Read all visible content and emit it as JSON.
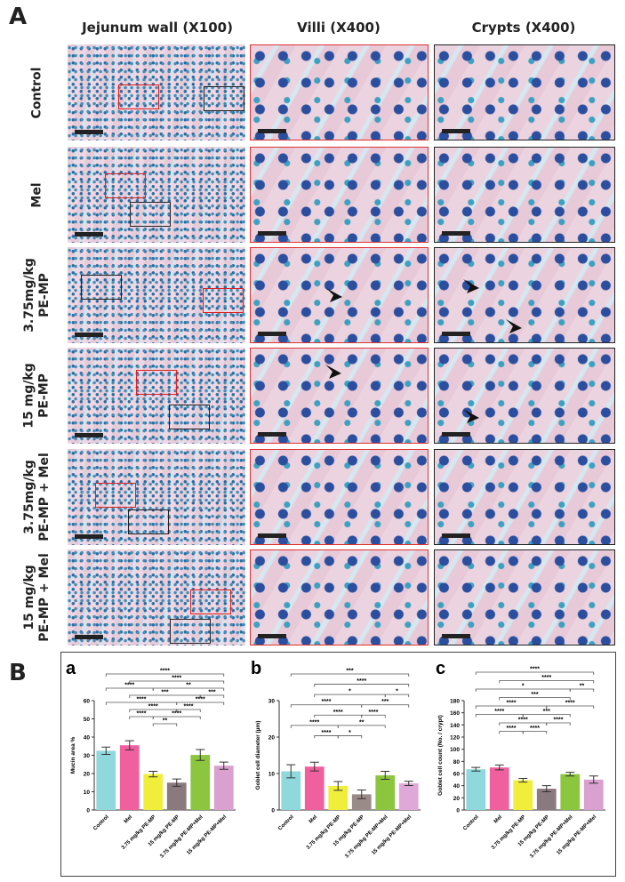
{
  "panel_labels": {
    "A": "A",
    "B": "B"
  },
  "columns": [
    "Jejunum wall (X100)",
    "Villi (X400)",
    "Crypts (X400)"
  ],
  "rows": [
    "Control",
    "Mel",
    "3.75mg/kg\nPE-MP",
    "15 mg/kg\nPE-MP",
    "3.75mg/kg\nPE-MP + Mel",
    "15 mg/kg\nPE-MP + Mel"
  ],
  "colors": {
    "roi_villi": "#e02020",
    "roi_crypts": "#222222"
  },
  "chart_data": [
    {
      "type": "bar",
      "panel": "a",
      "ylabel": "Mucin area %",
      "ylim": [
        0,
        60
      ],
      "yticks": [
        0,
        10,
        20,
        30,
        40,
        50,
        60
      ],
      "categories": [
        "Control",
        "Mel",
        "3.75 mg/kg PE-MP",
        "15 mg/kg PE-MP",
        "3.75 mg/kg PE-MP+Mel",
        "15 mg/kg PE-MP+Mel"
      ],
      "values": [
        32.5,
        35.5,
        19.7,
        15.0,
        30.2,
        24.3
      ],
      "errors": [
        2.0,
        2.5,
        1.5,
        2.0,
        3.0,
        2.0
      ],
      "colors": [
        "#8fd8dc",
        "#f0609e",
        "#f0ee3a",
        "#8a7a80",
        "#8cc63f",
        "#d9a0d0"
      ],
      "significance": [
        [
          0,
          5,
          "****"
        ],
        [
          1,
          5,
          "****"
        ],
        [
          2,
          5,
          "**"
        ],
        [
          1,
          4,
          "***"
        ],
        [
          0,
          3,
          "****"
        ],
        [
          1,
          3,
          "****"
        ],
        [
          3,
          5,
          "****"
        ],
        [
          0,
          2,
          "****"
        ],
        [
          2,
          4,
          "****"
        ],
        [
          1,
          2,
          "****"
        ],
        [
          2,
          3,
          "**"
        ],
        [
          3,
          4,
          "****"
        ],
        [
          4,
          5,
          "***"
        ]
      ]
    },
    {
      "type": "bar",
      "panel": "b",
      "ylabel": "Goblet cell diameter (µm)",
      "ylim": [
        0,
        30
      ],
      "yticks": [
        0,
        10,
        20,
        30
      ],
      "categories": [
        "Control",
        "Mel",
        "3.75 mg/kg PE-MP",
        "15 mg/kg PE-MP",
        "3.75 mg/kg PE-MP+Mel",
        "15 mg/kg PE-MP+Mel"
      ],
      "values": [
        10.6,
        11.9,
        6.6,
        4.3,
        9.5,
        7.3
      ],
      "errors": [
        1.8,
        1.2,
        1.2,
        1.2,
        1.1,
        0.6
      ],
      "colors": [
        "#8fd8dc",
        "#f0609e",
        "#f0ee3a",
        "#9a8a88",
        "#8cc63f",
        "#e0a8d8"
      ],
      "significance": [
        [
          0,
          5,
          "***"
        ],
        [
          1,
          5,
          "****"
        ],
        [
          1,
          4,
          "*"
        ],
        [
          0,
          3,
          "****"
        ],
        [
          1,
          3,
          "****"
        ],
        [
          3,
          5,
          "***"
        ],
        [
          0,
          2,
          "****"
        ],
        [
          2,
          4,
          "**"
        ],
        [
          1,
          2,
          "****"
        ],
        [
          2,
          3,
          "*"
        ],
        [
          3,
          4,
          "****"
        ],
        [
          4,
          5,
          "*"
        ]
      ]
    },
    {
      "type": "bar",
      "panel": "c",
      "ylabel": "Goblet cell count (No. / crypt)",
      "ylim": [
        0,
        180
      ],
      "yticks": [
        0,
        20,
        40,
        60,
        80,
        100,
        120,
        140,
        160,
        180
      ],
      "categories": [
        "Control",
        "Mel",
        "3.75 mg/kg PE-MP",
        "15 mg/kg PE-MP",
        "3.75 mg/kg PE-MP+Mel",
        "15 mg/kg PE-MP+Mel"
      ],
      "values": [
        67,
        70,
        49,
        35,
        59,
        50
      ],
      "errors": [
        3,
        4,
        3,
        5,
        3,
        6
      ],
      "colors": [
        "#8fd8dc",
        "#f0609e",
        "#f0ee3a",
        "#8a7a80",
        "#8cc63f",
        "#d9a0d0"
      ],
      "significance": [
        [
          0,
          5,
          "****"
        ],
        [
          1,
          5,
          "****"
        ],
        [
          0,
          4,
          "*"
        ],
        [
          1,
          4,
          "***"
        ],
        [
          0,
          3,
          "****"
        ],
        [
          2,
          4,
          "***"
        ],
        [
          1,
          3,
          "****"
        ],
        [
          0,
          2,
          "****"
        ],
        [
          3,
          5,
          "****"
        ],
        [
          1,
          2,
          "****"
        ],
        [
          2,
          3,
          "****"
        ],
        [
          3,
          4,
          "****"
        ],
        [
          4,
          5,
          "**"
        ]
      ]
    }
  ]
}
